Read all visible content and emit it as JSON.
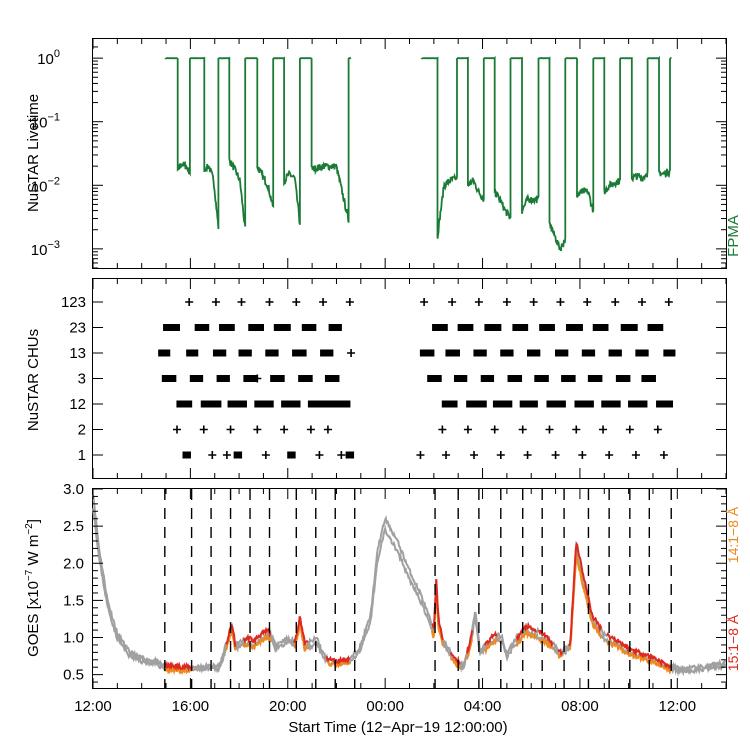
{
  "colors": {
    "livetime": "#1a7a36",
    "goes_long": "#e0281e",
    "goes_short": "#ee8a1c",
    "goes_gray": "#a0a0a0",
    "axis": "#000000"
  },
  "chart_data": [
    {
      "type": "line",
      "panel": "livetime",
      "ylabel": "NuSTAR Livetime",
      "series_label": "FPMA",
      "yscale": "log",
      "ylim": [
        0.0005,
        2
      ],
      "ytick_labels": [
        {
          "base": "10",
          "exp": "0",
          "v": 1
        },
        {
          "base": "10",
          "exp": "−1",
          "v": 0.1
        },
        {
          "base": "10",
          "exp": "−2",
          "v": 0.01
        },
        {
          "base": "10",
          "exp": "−3",
          "v": 0.001
        }
      ],
      "segments": [
        {
          "start": 14.98,
          "end": 22.6,
          "high": 1.0,
          "windows": [
            {
              "s": 15.48,
              "e": 15.98,
              "lvl": [
                0.017,
                0.022,
                0.02,
                0.016
              ]
            },
            {
              "s": 16.57,
              "e": 17.15,
              "lvl": [
                0.018,
                0.02,
                0.012,
                0.0022
              ]
            },
            {
              "s": 17.6,
              "e": 18.25,
              "lvl": [
                0.025,
                0.018,
                0.012,
                0.002
              ]
            },
            {
              "s": 18.75,
              "e": 19.4,
              "lvl": [
                0.02,
                0.014,
                0.01,
                0.0045
              ]
            },
            {
              "s": 19.85,
              "e": 20.5,
              "lvl": [
                0.012,
                0.015,
                0.013,
                0.0025
              ]
            },
            {
              "s": 20.98,
              "e": 22.5,
              "lvl": [
                0.018,
                0.02,
                0.02,
                0.0028
              ]
            }
          ]
        },
        {
          "start": 25.5,
          "end": 35.78,
          "high": 1.0,
          "windows": [
            {
              "s": 26.15,
              "e": 26.95,
              "lvl": [
                0.0016,
                0.01,
                0.012,
                0.013
              ]
            },
            {
              "s": 27.4,
              "e": 28.05,
              "lvl": [
                0.01,
                0.012,
                0.008,
                0.006
              ]
            },
            {
              "s": 28.5,
              "e": 29.15,
              "lvl": [
                0.008,
                0.006,
                0.004,
                0.003
              ]
            },
            {
              "s": 29.62,
              "e": 30.3,
              "lvl": [
                0.004,
                0.006,
                0.006,
                0.006
              ]
            },
            {
              "s": 30.75,
              "e": 31.4,
              "lvl": [
                0.0025,
                0.0016,
                0.001,
                0.0014
              ]
            },
            {
              "s": 31.88,
              "e": 32.55,
              "lvl": [
                0.007,
                0.008,
                0.008,
                0.004
              ]
            },
            {
              "s": 33.0,
              "e": 33.65,
              "lvl": [
                0.008,
                0.01,
                0.011,
                0.012
              ]
            },
            {
              "s": 34.13,
              "e": 34.78,
              "lvl": [
                0.013,
                0.014,
                0.013,
                0.016
              ]
            },
            {
              "s": 35.25,
              "e": 35.7,
              "lvl": [
                0.016,
                0.015,
                0.016,
                0.017
              ]
            }
          ]
        }
      ]
    },
    {
      "type": "scatter",
      "panel": "chus",
      "ylabel": "NuSTAR CHUs",
      "categories": [
        "123",
        "23",
        "13",
        "3",
        "12",
        "2",
        "1"
      ],
      "points": {
        "123": [
          {
            "t": 15.95
          },
          {
            "t": 17.05
          },
          {
            "t": 18.1
          },
          {
            "t": 19.25
          },
          {
            "t": 20.35
          },
          {
            "t": 21.45
          },
          {
            "t": 22.55
          },
          {
            "t": 25.6
          },
          {
            "t": 26.75
          },
          {
            "t": 27.85
          },
          {
            "t": 29.0
          },
          {
            "t": 30.1
          },
          {
            "t": 31.2
          },
          {
            "t": 32.3
          },
          {
            "t": 33.45
          },
          {
            "t": 34.55
          },
          {
            "t": 35.65
          }
        ],
        "23": [
          {
            "t": 15.0,
            "e": 15.45
          },
          {
            "t": 16.3,
            "e": 16.65
          },
          {
            "t": 17.3,
            "e": 17.7
          },
          {
            "t": 18.5,
            "e": 18.9
          },
          {
            "t": 19.55,
            "e": 20.0
          },
          {
            "t": 20.7,
            "e": 21.05
          },
          {
            "t": 21.8,
            "e": 22.1
          },
          {
            "t": 26.05,
            "e": 26.45
          },
          {
            "t": 27.1,
            "e": 27.5
          },
          {
            "t": 28.2,
            "e": 28.65
          },
          {
            "t": 29.35,
            "e": 29.75
          },
          {
            "t": 30.45,
            "e": 30.85
          },
          {
            "t": 31.55,
            "e": 32.0
          },
          {
            "t": 32.65,
            "e": 33.05
          },
          {
            "t": 33.8,
            "e": 34.25
          },
          {
            "t": 34.9,
            "e": 35.3
          }
        ],
        "13": [
          {
            "t": 14.8,
            "e": 15.05
          },
          {
            "t": 15.95,
            "e": 16.2
          },
          {
            "t": 17.05,
            "e": 17.35
          },
          {
            "t": 18.1,
            "e": 18.4
          },
          {
            "t": 19.2,
            "e": 19.5
          },
          {
            "t": 20.3,
            "e": 20.65
          },
          {
            "t": 21.45,
            "e": 21.75
          },
          {
            "t": 22.6
          },
          {
            "t": 25.55,
            "e": 25.9
          },
          {
            "t": 26.6,
            "e": 26.95
          },
          {
            "t": 27.75,
            "e": 28.05
          },
          {
            "t": 28.85,
            "e": 29.15
          },
          {
            "t": 29.95,
            "e": 30.25
          },
          {
            "t": 31.1,
            "e": 31.4
          },
          {
            "t": 32.2,
            "e": 32.5
          },
          {
            "t": 33.3,
            "e": 33.6
          },
          {
            "t": 34.4,
            "e": 34.7
          },
          {
            "t": 35.55,
            "e": 35.8
          }
        ],
        "3": [
          {
            "t": 14.95,
            "e": 15.3
          },
          {
            "t": 16.1,
            "e": 16.4
          },
          {
            "t": 17.2,
            "e": 17.5
          },
          {
            "t": 18.3,
            "e": 18.6
          },
          {
            "t": 18.75
          },
          {
            "t": 19.4,
            "e": 19.75
          },
          {
            "t": 20.55,
            "e": 20.9
          },
          {
            "t": 21.65,
            "e": 22.0
          },
          {
            "t": 25.85,
            "e": 26.2
          },
          {
            "t": 26.95,
            "e": 27.25
          },
          {
            "t": 28.05,
            "e": 28.35
          },
          {
            "t": 29.15,
            "e": 29.5
          },
          {
            "t": 30.25,
            "e": 30.6
          },
          {
            "t": 31.35,
            "e": 31.7
          },
          {
            "t": 32.45,
            "e": 32.8
          },
          {
            "t": 33.6,
            "e": 33.95
          },
          {
            "t": 34.65,
            "e": 35.0
          }
        ],
        "12": [
          {
            "t": 15.55,
            "e": 15.95
          },
          {
            "t": 16.55,
            "e": 17.15
          },
          {
            "t": 17.65,
            "e": 18.2
          },
          {
            "t": 18.75,
            "e": 19.3
          },
          {
            "t": 19.85,
            "e": 20.4
          },
          {
            "t": 20.95,
            "e": 21.45
          },
          {
            "t": 21.55,
            "e": 22.45
          },
          {
            "t": 26.45,
            "e": 26.85
          },
          {
            "t": 27.45,
            "e": 28.05
          },
          {
            "t": 28.55,
            "e": 29.1
          },
          {
            "t": 29.65,
            "e": 30.15
          },
          {
            "t": 30.75,
            "e": 31.3
          },
          {
            "t": 31.9,
            "e": 32.45
          },
          {
            "t": 33.0,
            "e": 33.55
          },
          {
            "t": 34.1,
            "e": 34.65
          },
          {
            "t": 35.25,
            "e": 35.7
          }
        ],
        "2": [
          {
            "t": 15.45
          },
          {
            "t": 16.55
          },
          {
            "t": 17.65
          },
          {
            "t": 18.75
          },
          {
            "t": 19.85
          },
          {
            "t": 20.95
          },
          {
            "t": 21.65
          },
          {
            "t": 26.35
          },
          {
            "t": 27.4
          },
          {
            "t": 28.5
          },
          {
            "t": 29.65
          },
          {
            "t": 30.75
          },
          {
            "t": 31.85
          },
          {
            "t": 32.95
          },
          {
            "t": 34.05
          },
          {
            "t": 35.2
          }
        ],
        "1": [
          {
            "t": 15.8,
            "e": 15.9
          },
          {
            "t": 16.9
          },
          {
            "t": 17.5
          },
          {
            "t": 17.9,
            "e": 18.0
          },
          {
            "t": 19.1
          },
          {
            "t": 20.1,
            "e": 20.2
          },
          {
            "t": 21.3
          },
          {
            "t": 22.2
          },
          {
            "t": 22.5,
            "e": 22.6
          },
          {
            "t": 25.45
          },
          {
            "t": 26.5
          },
          {
            "t": 27.65
          },
          {
            "t": 28.75
          },
          {
            "t": 29.85
          },
          {
            "t": 31.0
          },
          {
            "t": 32.1
          },
          {
            "t": 33.2
          },
          {
            "t": 34.3
          },
          {
            "t": 35.45
          }
        ]
      }
    },
    {
      "type": "line",
      "panel": "goes",
      "ylabel_prefix": "GOES [x10",
      "ylabel_exp1": "−7",
      "ylabel_mid": " W m",
      "ylabel_exp2": "−2",
      "ylabel_suffix": "]",
      "ylim": [
        0.32,
        3.0
      ],
      "ytick_labels": [
        "3.0",
        "2.5",
        "2.0",
        "1.5",
        "1.0",
        "0.5"
      ],
      "yticks": [
        3.0,
        2.5,
        2.0,
        1.5,
        1.0,
        0.5
      ],
      "xlabel": "Start Time (12−Apr−19 12:00:00)",
      "xlim": [
        12,
        38
      ],
      "xtick_labels": [
        "12:00",
        "16:00",
        "20:00",
        "00:00",
        "04:00",
        "08:00",
        "12:00"
      ],
      "xticks": [
        12,
        16,
        20,
        24,
        28,
        32,
        36
      ],
      "legend": [
        "14:1−8 Å",
        "15:1−8 Å"
      ],
      "dashed_lines": [
        14.95,
        16.05,
        16.85,
        17.65,
        18.45,
        19.25,
        20.35,
        21.15,
        21.95,
        22.75,
        26.05,
        27.0,
        27.85,
        28.75,
        29.65,
        30.45,
        31.35,
        32.35,
        33.2,
        34.05,
        34.85,
        35.75
      ],
      "gray_knots": [
        [
          12,
          2.95
        ],
        [
          12.25,
          2.2
        ],
        [
          12.6,
          1.5
        ],
        [
          13.0,
          1.05
        ],
        [
          13.5,
          0.8
        ],
        [
          14.0,
          0.72
        ],
        [
          14.6,
          0.68
        ],
        [
          14.95,
          0.62
        ],
        [
          16.0,
          0.6
        ],
        [
          17.2,
          0.62
        ],
        [
          17.55,
          1.0
        ],
        [
          17.7,
          1.18
        ],
        [
          17.85,
          0.9
        ],
        [
          18.1,
          0.95
        ],
        [
          18.4,
          1.0
        ],
        [
          18.6,
          0.95
        ],
        [
          18.8,
          1.02
        ],
        [
          19.2,
          1.1
        ],
        [
          19.5,
          0.9
        ],
        [
          19.9,
          0.98
        ],
        [
          20.3,
          0.95
        ],
        [
          20.5,
          1.28
        ],
        [
          20.7,
          0.92
        ],
        [
          21.0,
          0.95
        ],
        [
          21.2,
          1.0
        ],
        [
          21.4,
          0.82
        ],
        [
          21.6,
          0.72
        ],
        [
          22.0,
          0.68
        ],
        [
          22.6,
          0.72
        ],
        [
          23.0,
          0.9
        ],
        [
          23.4,
          1.3
        ],
        [
          23.7,
          2.2
        ],
        [
          24.0,
          2.6
        ],
        [
          24.5,
          2.3
        ],
        [
          25.0,
          1.9
        ],
        [
          25.5,
          1.55
        ],
        [
          26.0,
          1.1
        ],
        [
          26.1,
          1.8
        ],
        [
          26.2,
          1.2
        ],
        [
          26.4,
          0.95
        ],
        [
          26.8,
          0.75
        ],
        [
          27.2,
          0.62
        ],
        [
          27.5,
          0.95
        ],
        [
          27.7,
          1.35
        ],
        [
          27.9,
          0.82
        ],
        [
          28.1,
          0.9
        ],
        [
          28.5,
          1.05
        ],
        [
          28.8,
          1.0
        ],
        [
          29.0,
          0.78
        ],
        [
          29.3,
          0.95
        ],
        [
          29.8,
          1.15
        ],
        [
          30.1,
          1.1
        ],
        [
          30.5,
          1.05
        ],
        [
          30.8,
          0.95
        ],
        [
          31.2,
          0.8
        ],
        [
          31.6,
          0.9
        ],
        [
          31.85,
          2.3
        ],
        [
          32.1,
          1.9
        ],
        [
          32.5,
          1.3
        ],
        [
          33.0,
          1.05
        ],
        [
          33.6,
          0.95
        ],
        [
          34.0,
          0.85
        ],
        [
          34.6,
          0.78
        ],
        [
          35.1,
          0.72
        ],
        [
          35.6,
          0.62
        ],
        [
          36.2,
          0.58
        ],
        [
          37.0,
          0.6
        ],
        [
          38.0,
          0.66
        ]
      ],
      "color_windows": [
        [
          14.95,
          16.1
        ],
        [
          17.45,
          17.85
        ],
        [
          18.15,
          19.3
        ],
        [
          20.25,
          20.85
        ],
        [
          21.6,
          22.55
        ],
        [
          25.9,
          26.4
        ],
        [
          26.7,
          27.1
        ],
        [
          27.35,
          27.6
        ],
        [
          28.1,
          28.6
        ],
        [
          29.4,
          30.2
        ],
        [
          30.3,
          30.9
        ],
        [
          31.1,
          31.3
        ],
        [
          31.55,
          32.9
        ],
        [
          33.1,
          35.75
        ]
      ]
    }
  ]
}
